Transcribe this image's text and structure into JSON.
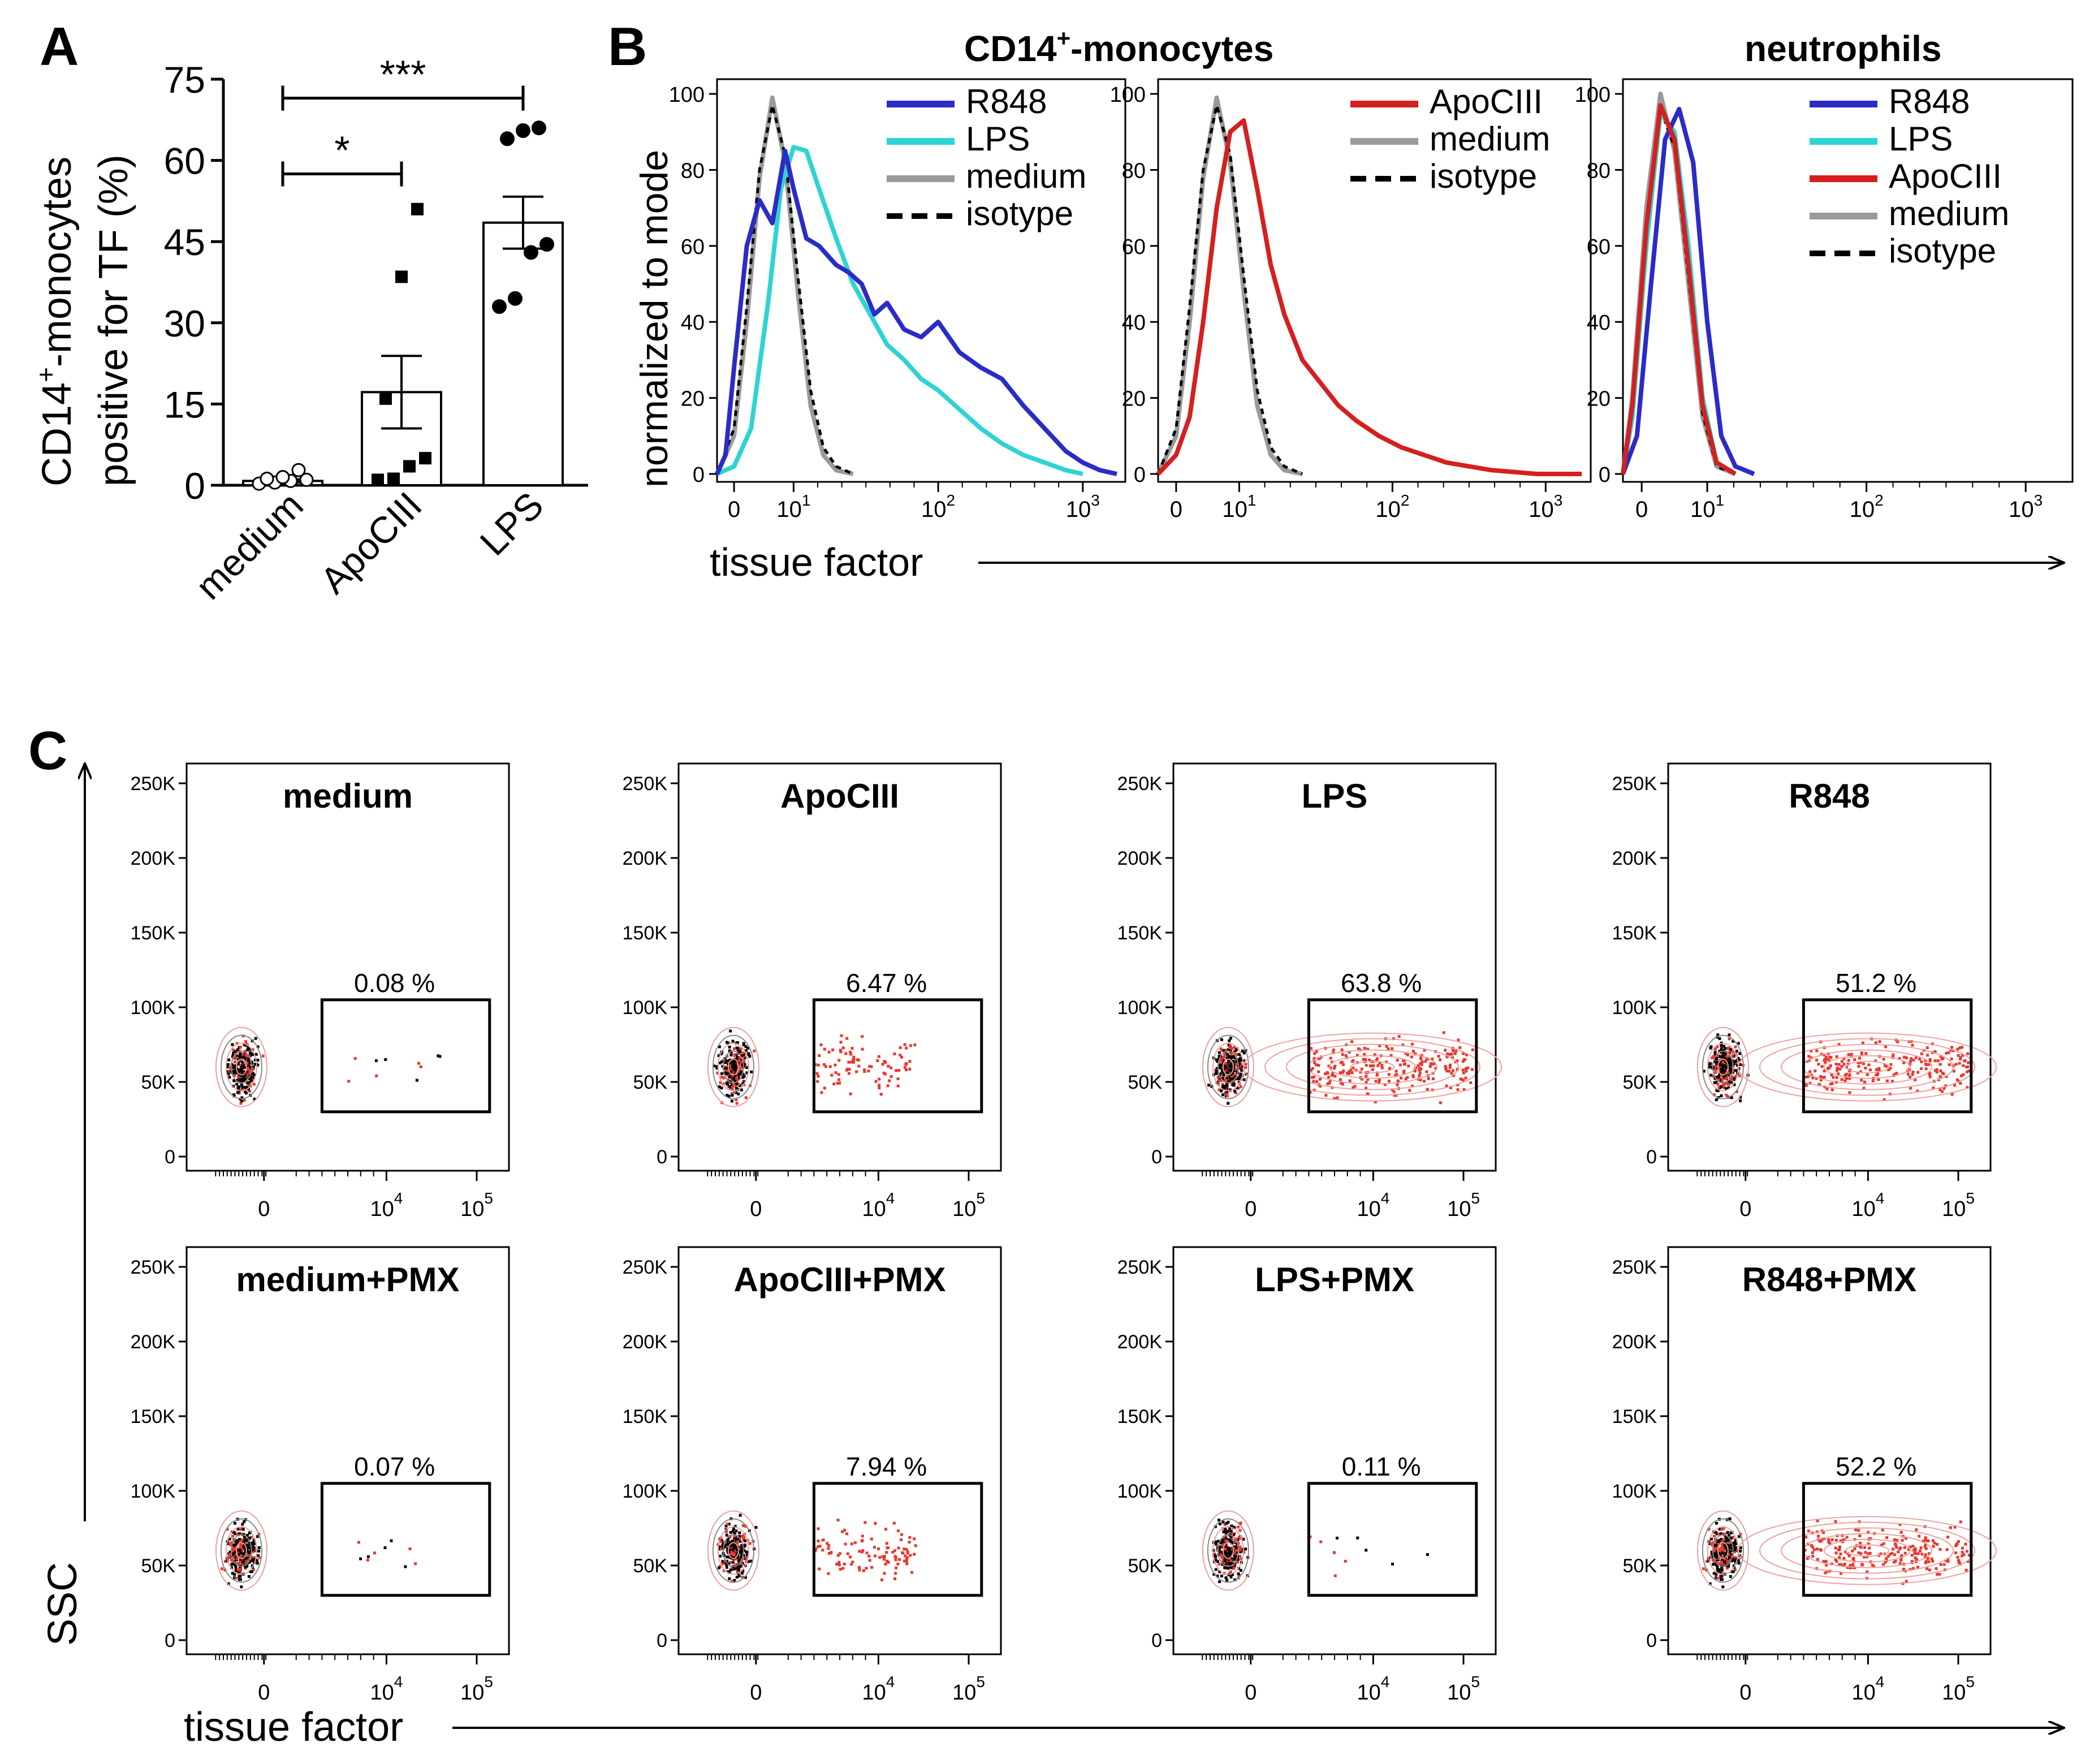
{
  "figure": {
    "panel_labels": [
      "A",
      "B",
      "C"
    ]
  },
  "colors": {
    "R848": "#2b2bc8",
    "LPS": "#2fd3d3",
    "ApoCIII": "#d61f1f",
    "medium": "#9a9a9a",
    "isotype": "#000000",
    "event_red": "#e8382e",
    "event_black": "#000000"
  },
  "chart_data": [
    {
      "id": "A",
      "type": "bar",
      "ylabel_line1": "CD14",
      "ylabel_sup": "+",
      "ylabel_line1_rest": "-monocytes",
      "ylabel_line2": "positive for TF (%)",
      "ylim": [
        0,
        75
      ],
      "yticks": [
        "0",
        "15",
        "30",
        "45",
        "60",
        "75"
      ],
      "categories": [
        "medium",
        "ApoCIII",
        "LPS"
      ],
      "means": [
        0.8,
        17.2,
        48.5
      ],
      "sem": [
        0.3,
        6.7,
        4.8
      ],
      "points": [
        [
          0.3,
          0.5,
          0.8,
          1.0,
          1.2,
          1.5,
          2.8
        ],
        [
          1.0,
          1.2,
          3.5,
          5.0,
          16.0,
          38.5,
          51.0
        ],
        [
          33.0,
          34.5,
          43.0,
          44.5,
          64.0,
          65.5,
          66.0
        ]
      ],
      "significance": [
        {
          "from": "medium",
          "to": "ApoCIII",
          "label": "*"
        },
        {
          "from": "medium",
          "to": "LPS",
          "label": "***"
        }
      ]
    },
    {
      "id": "B",
      "type": "line",
      "title_main": "CD14",
      "title_sup": "+",
      "title_rest": "-monocytes",
      "title_neutrophils": "neutrophils",
      "ylabel": "normalized to mode",
      "xlabel": "tissue factor",
      "yticks": [
        "0",
        "20",
        "40",
        "60",
        "80",
        "100"
      ],
      "xticks": [
        "0",
        "10",
        "10",
        "10"
      ],
      "xtick_exponents": [
        "",
        "1",
        "2",
        "3"
      ],
      "panels": [
        {
          "name": "CD14+ monocytes (R848/LPS)",
          "legend": [
            "R848",
            "LPS",
            "medium",
            "isotype"
          ],
          "series": [
            {
              "name": "R848",
              "x": [
                -0.4,
                -0.2,
                0,
                0.3,
                0.6,
                0.9,
                1.2,
                1.4,
                1.7,
                2.0,
                2.4,
                2.7,
                3.0,
                3.3,
                3.6,
                4.0,
                4.4,
                4.8,
                5.3,
                5.8,
                6.3,
                6.8,
                7.3,
                7.8,
                8.2,
                8.6,
                9.0
              ],
              "y": [
                0,
                5,
                28,
                60,
                72,
                66,
                85,
                75,
                62,
                60,
                55,
                53,
                50,
                42,
                45,
                38,
                36,
                40,
                32,
                28,
                25,
                18,
                12,
                6,
                3,
                1,
                0
              ]
            },
            {
              "name": "LPS",
              "x": [
                -0.4,
                0,
                0.4,
                0.8,
                1.1,
                1.4,
                1.7,
                2.0,
                2.4,
                2.8,
                3.2,
                3.6,
                4.0,
                4.4,
                4.8,
                5.3,
                5.8,
                6.3,
                6.8,
                7.3,
                7.8,
                8.2
              ],
              "y": [
                0,
                2,
                12,
                45,
                75,
                86,
                85,
                75,
                62,
                50,
                42,
                34,
                30,
                25,
                22,
                17,
                12,
                8,
                5,
                3,
                1,
                0
              ]
            },
            {
              "name": "medium",
              "x": [
                -0.4,
                0,
                0.3,
                0.6,
                0.9,
                1.2,
                1.5,
                1.8,
                2.1,
                2.4,
                2.8
              ],
              "y": [
                0,
                10,
                40,
                78,
                99,
                82,
                48,
                18,
                5,
                1,
                0
              ]
            },
            {
              "name": "isotype",
              "x": [
                -0.4,
                0,
                0.3,
                0.6,
                0.9,
                1.2,
                1.5,
                1.8,
                2.1,
                2.4,
                2.8
              ],
              "y": [
                0,
                12,
                44,
                80,
                97,
                84,
                52,
                22,
                7,
                2,
                0
              ]
            }
          ]
        },
        {
          "name": "CD14+ monocytes (ApoCIII)",
          "legend": [
            "ApoCIII",
            "medium",
            "isotype"
          ],
          "series": [
            {
              "name": "ApoCIII",
              "x": [
                -0.4,
                0,
                0.3,
                0.6,
                0.9,
                1.2,
                1.5,
                1.8,
                2.1,
                2.4,
                2.8,
                3.2,
                3.6,
                4.0,
                4.5,
                5.0,
                5.5,
                6.0,
                6.5,
                7.0,
                7.5,
                8.0,
                8.5,
                9.0
              ],
              "y": [
                0,
                5,
                15,
                40,
                70,
                90,
                93,
                75,
                55,
                42,
                30,
                24,
                18,
                14,
                10,
                7,
                5,
                3,
                2,
                1,
                0.5,
                0,
                0,
                0
              ]
            },
            {
              "name": "medium",
              "x": [
                -0.4,
                0,
                0.3,
                0.6,
                0.9,
                1.2,
                1.5,
                1.8,
                2.1,
                2.4,
                2.8
              ],
              "y": [
                0,
                10,
                40,
                78,
                99,
                82,
                48,
                18,
                5,
                1,
                0
              ]
            },
            {
              "name": "isotype",
              "x": [
                -0.4,
                0,
                0.3,
                0.6,
                0.9,
                1.2,
                1.5,
                1.8,
                2.1,
                2.4,
                2.8
              ],
              "y": [
                0,
                12,
                44,
                80,
                97,
                84,
                52,
                22,
                7,
                2,
                0
              ]
            }
          ]
        },
        {
          "name": "neutrophils",
          "legend": [
            "R848",
            "LPS",
            "ApoCIII",
            "medium",
            "isotype"
          ],
          "series": [
            {
              "name": "R848",
              "x": [
                -0.4,
                -0.1,
                0.2,
                0.5,
                0.8,
                1.1,
                1.4,
                1.7,
                2.0,
                2.4
              ],
              "y": [
                0,
                10,
                50,
                88,
                96,
                82,
                40,
                10,
                2,
                0
              ]
            },
            {
              "name": "LPS",
              "x": [
                -0.4,
                -0.2,
                0.1,
                0.4,
                0.7,
                1.0,
                1.3,
                1.6,
                2.0
              ],
              "y": [
                0,
                15,
                60,
                95,
                90,
                60,
                20,
                3,
                0
              ]
            },
            {
              "name": "ApoCIII",
              "x": [
                -0.4,
                -0.2,
                0.1,
                0.4,
                0.7,
                1.0,
                1.3,
                1.6,
                2.0
              ],
              "y": [
                0,
                18,
                65,
                97,
                88,
                55,
                18,
                3,
                0
              ]
            },
            {
              "name": "medium",
              "x": [
                -0.4,
                -0.2,
                0.1,
                0.4,
                0.7,
                1.0,
                1.3,
                1.6,
                2.0
              ],
              "y": [
                0,
                20,
                70,
                100,
                85,
                50,
                15,
                2,
                0
              ]
            },
            {
              "name": "isotype",
              "x": [
                -0.4,
                -0.2,
                0.1,
                0.4,
                0.7,
                1.0,
                1.3,
                1.6,
                2.0
              ],
              "y": [
                0,
                18,
                65,
                96,
                86,
                52,
                16,
                2,
                0
              ]
            }
          ]
        }
      ]
    },
    {
      "id": "C",
      "type": "scatter",
      "ylabel": "SSC",
      "xlabel": "tissue factor",
      "yticks": [
        "0",
        "50K",
        "100K",
        "150K",
        "200K",
        "250K"
      ],
      "xticks": [
        "0",
        "10",
        "10"
      ],
      "xtick_exponents": [
        "",
        "4",
        "5"
      ],
      "panels": [
        {
          "label": "medium",
          "gate_pct": "0.08 %",
          "spread": 0.02
        },
        {
          "label": "ApoCIII",
          "gate_pct": "6.47 %",
          "spread": 0.35
        },
        {
          "label": "LPS",
          "gate_pct": "63.8 %",
          "spread": 1.0
        },
        {
          "label": "R848",
          "gate_pct": "51.2 %",
          "spread": 0.9
        },
        {
          "label": "medium+PMX",
          "gate_pct": "0.07 %",
          "spread": 0.02
        },
        {
          "label": "ApoCIII+PMX",
          "gate_pct": "7.94 %",
          "spread": 0.4
        },
        {
          "label": "LPS+PMX",
          "gate_pct": "0.11 %",
          "spread": 0.02
        },
        {
          "label": "R848+PMX",
          "gate_pct": "52.2 %",
          "spread": 0.9
        }
      ]
    }
  ]
}
